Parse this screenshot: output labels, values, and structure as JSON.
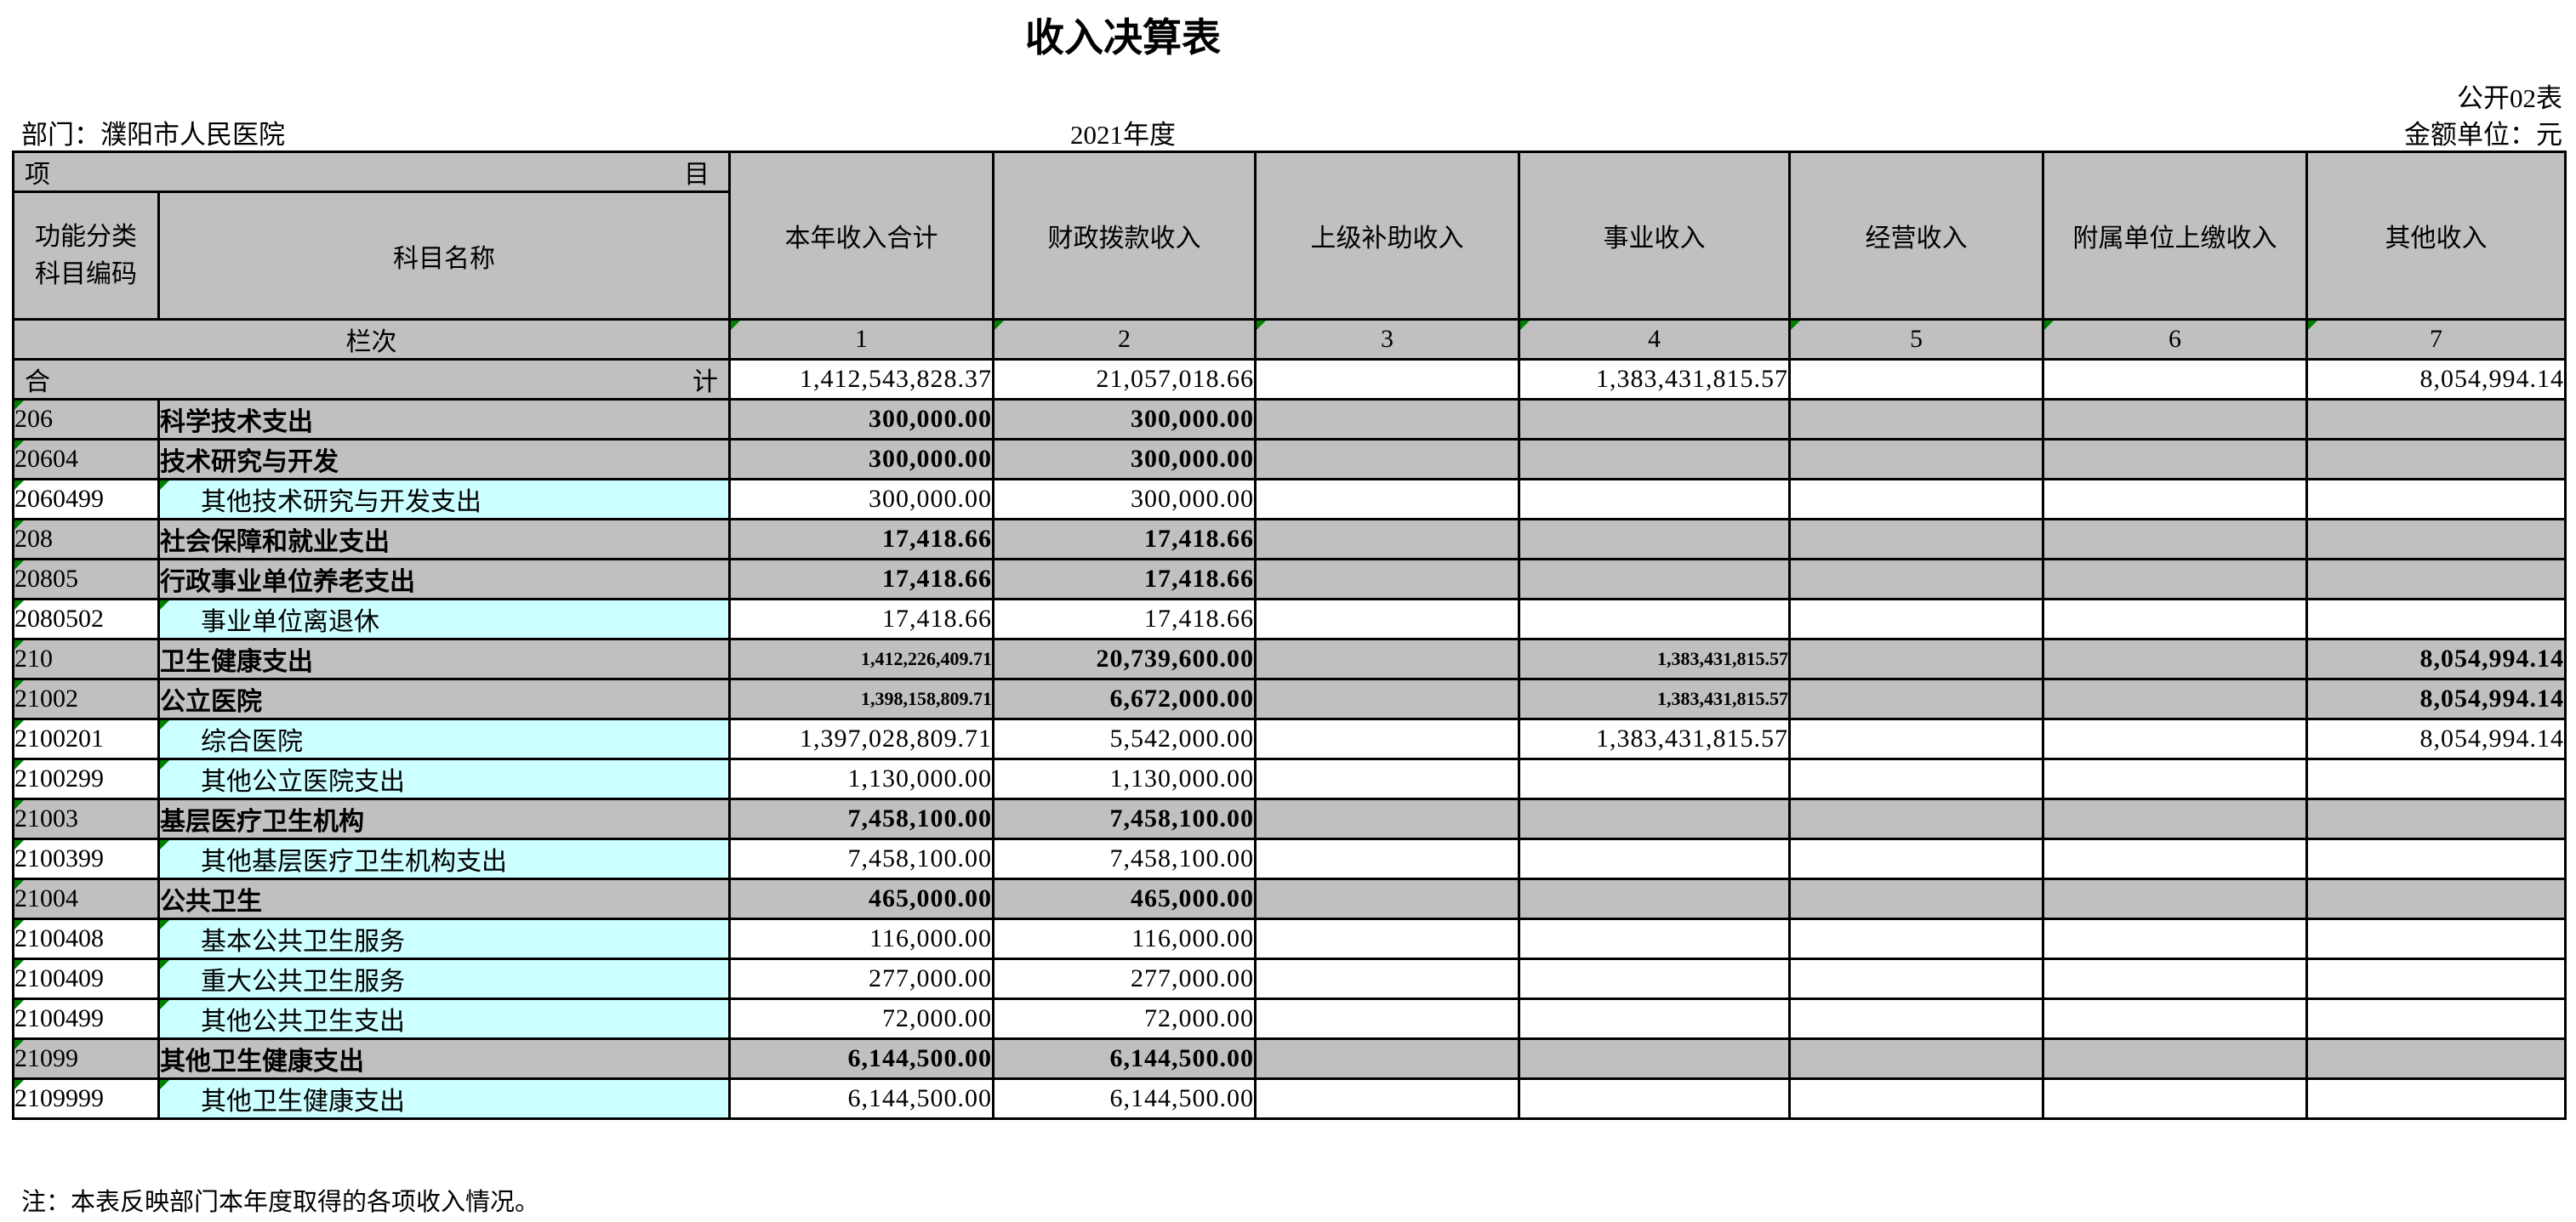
{
  "page": {
    "title": "收入决算表",
    "form_code": "公开02表",
    "department": "部门：濮阳市人民医院",
    "year": "2021年度",
    "unit": "金额单位：元",
    "note": "注：本表反映部门本年度取得的各项收入情况。"
  },
  "colors": {
    "header_gray": "#c0c0c0",
    "detail_cyan": "#ccffff",
    "marker_green": "#008000"
  },
  "table": {
    "header": {
      "item_left": "项",
      "item_right": "目",
      "code_header": "功能分类\n科目编码",
      "name_header": "科目名称",
      "value_columns": [
        "本年收入合计",
        "财政拨款收入",
        "上级补助收入",
        "事业收入",
        "经营收入",
        "附属单位上缴收入",
        "其他收入"
      ],
      "lanci_label": "栏次",
      "column_numbers": [
        "1",
        "2",
        "3",
        "4",
        "5",
        "6",
        "7"
      ]
    },
    "total_row": {
      "label_left": "合",
      "label_right": "计",
      "values": [
        "1,412,543,828.37",
        "21,057,018.66",
        "",
        "1,383,431,815.57",
        "",
        "",
        "8,054,994.14"
      ]
    },
    "rows": [
      {
        "code": "206",
        "name": "科学技术支出",
        "type": "summary",
        "values": [
          "300,000.00",
          "300,000.00",
          "",
          "",
          "",
          "",
          ""
        ]
      },
      {
        "code": "20604",
        "name": "技术研究与开发",
        "type": "summary",
        "values": [
          "300,000.00",
          "300,000.00",
          "",
          "",
          "",
          "",
          ""
        ]
      },
      {
        "code": "2060499",
        "name": "其他技术研究与开发支出",
        "type": "detail",
        "values": [
          "300,000.00",
          "300,000.00",
          "",
          "",
          "",
          "",
          ""
        ]
      },
      {
        "code": "208",
        "name": "社会保障和就业支出",
        "type": "summary",
        "values": [
          "17,418.66",
          "17,418.66",
          "",
          "",
          "",
          "",
          ""
        ]
      },
      {
        "code": "20805",
        "name": "行政事业单位养老支出",
        "type": "summary",
        "values": [
          "17,418.66",
          "17,418.66",
          "",
          "",
          "",
          "",
          ""
        ]
      },
      {
        "code": "2080502",
        "name": "事业单位离退休",
        "type": "detail",
        "values": [
          "17,418.66",
          "17,418.66",
          "",
          "",
          "",
          "",
          ""
        ]
      },
      {
        "code": "210",
        "name": "卫生健康支出",
        "type": "summary",
        "small": [
          0,
          3
        ],
        "values": [
          "1,412,226,409.71",
          "20,739,600.00",
          "",
          "1,383,431,815.57",
          "",
          "",
          "8,054,994.14"
        ]
      },
      {
        "code": "21002",
        "name": "公立医院",
        "type": "summary",
        "small": [
          0,
          3
        ],
        "values": [
          "1,398,158,809.71",
          "6,672,000.00",
          "",
          "1,383,431,815.57",
          "",
          "",
          "8,054,994.14"
        ]
      },
      {
        "code": "2100201",
        "name": "综合医院",
        "type": "detail",
        "values": [
          "1,397,028,809.71",
          "5,542,000.00",
          "",
          "1,383,431,815.57",
          "",
          "",
          "8,054,994.14"
        ]
      },
      {
        "code": "2100299",
        "name": "其他公立医院支出",
        "type": "detail",
        "values": [
          "1,130,000.00",
          "1,130,000.00",
          "",
          "",
          "",
          "",
          ""
        ]
      },
      {
        "code": "21003",
        "name": "基层医疗卫生机构",
        "type": "summary",
        "values": [
          "7,458,100.00",
          "7,458,100.00",
          "",
          "",
          "",
          "",
          ""
        ]
      },
      {
        "code": "2100399",
        "name": "其他基层医疗卫生机构支出",
        "type": "detail",
        "values": [
          "7,458,100.00",
          "7,458,100.00",
          "",
          "",
          "",
          "",
          ""
        ]
      },
      {
        "code": "21004",
        "name": "公共卫生",
        "type": "summary",
        "values": [
          "465,000.00",
          "465,000.00",
          "",
          "",
          "",
          "",
          ""
        ]
      },
      {
        "code": "2100408",
        "name": "基本公共卫生服务",
        "type": "detail",
        "values": [
          "116,000.00",
          "116,000.00",
          "",
          "",
          "",
          "",
          ""
        ]
      },
      {
        "code": "2100409",
        "name": "重大公共卫生服务",
        "type": "detail",
        "values": [
          "277,000.00",
          "277,000.00",
          "",
          "",
          "",
          "",
          ""
        ]
      },
      {
        "code": "2100499",
        "name": "其他公共卫生支出",
        "type": "detail",
        "values": [
          "72,000.00",
          "72,000.00",
          "",
          "",
          "",
          "",
          ""
        ]
      },
      {
        "code": "21099",
        "name": "其他卫生健康支出",
        "type": "summary",
        "values": [
          "6,144,500.00",
          "6,144,500.00",
          "",
          "",
          "",
          "",
          ""
        ]
      },
      {
        "code": "2109999",
        "name": "其他卫生健康支出",
        "type": "detail",
        "values": [
          "6,144,500.00",
          "6,144,500.00",
          "",
          "",
          "",
          "",
          ""
        ]
      }
    ]
  }
}
